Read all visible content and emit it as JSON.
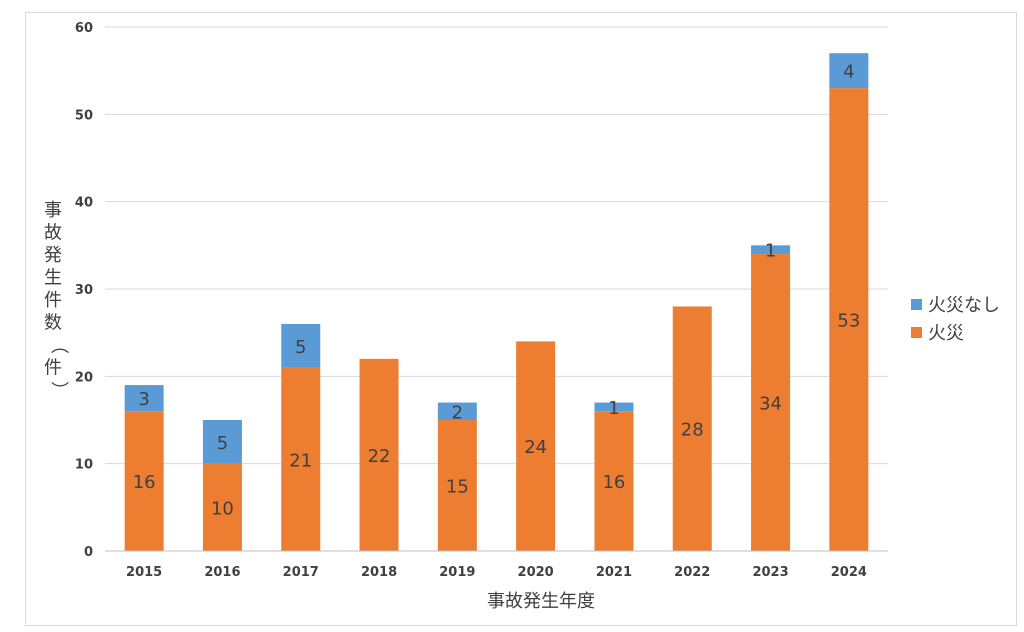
{
  "chart_data": {
    "type": "bar",
    "stacked": true,
    "categories": [
      "2015",
      "2016",
      "2017",
      "2018",
      "2019",
      "2020",
      "2021",
      "2022",
      "2023",
      "2024"
    ],
    "series": [
      {
        "name": "火災",
        "color": "#ED7D31",
        "values": [
          16,
          10,
          21,
          22,
          15,
          24,
          16,
          28,
          34,
          53
        ]
      },
      {
        "name": "火災なし",
        "color": "#5B9BD5",
        "values": [
          3,
          5,
          5,
          0,
          2,
          0,
          1,
          0,
          1,
          4
        ]
      }
    ],
    "xlabel": "事故発生年度",
    "ylabel": "事故発生件数（件）",
    "ylim": [
      0,
      60
    ],
    "yticks": [
      0,
      10,
      20,
      30,
      40,
      50,
      60
    ],
    "grid": true,
    "legend_position": "right",
    "legend_order": [
      "火災なし",
      "火災"
    ]
  }
}
